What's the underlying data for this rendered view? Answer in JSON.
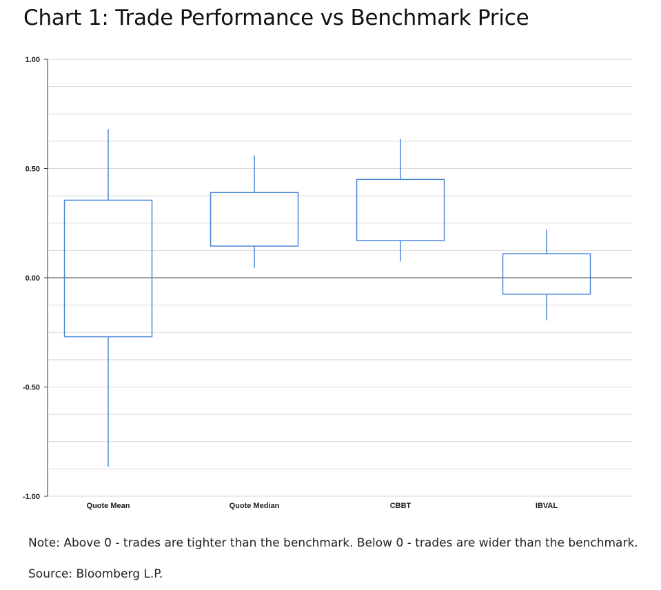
{
  "chart_data": {
    "type": "box",
    "title": "Chart 1: Trade Performance vs Benchmark Price",
    "xlabel": "",
    "ylabel": "",
    "ylim": [
      -1.0,
      1.0
    ],
    "yticks": [
      "1.00",
      "0.50",
      "0.00",
      "-0.50",
      "-1.00"
    ],
    "ytick_values": [
      1.0,
      0.5,
      0.0,
      -0.5,
      -1.0
    ],
    "grid": true,
    "categories": [
      "Quote Mean",
      "Quote Median",
      "CBBT",
      "IBVAL"
    ],
    "boxes": [
      {
        "category": "Quote Mean",
        "whisker_high": 0.68,
        "box_high": 0.355,
        "box_low": -0.27,
        "whisker_low": -0.865
      },
      {
        "category": "Quote Median",
        "whisker_high": 0.56,
        "box_high": 0.39,
        "box_low": 0.145,
        "whisker_low": 0.045
      },
      {
        "category": "CBBT",
        "whisker_high": 0.635,
        "box_high": 0.45,
        "box_low": 0.17,
        "whisker_low": 0.075
      },
      {
        "category": "IBVAL",
        "whisker_high": 0.22,
        "box_high": 0.11,
        "box_low": -0.075,
        "whisker_low": -0.195
      }
    ],
    "colors": {
      "box": "#4a86d8",
      "grid": "#d9d9d9",
      "axis": "#333333",
      "zero_line": "#444444"
    }
  },
  "footer": {
    "note": "Note: Above 0 - trades are tighter than the benchmark. Below 0 - trades are wider than the benchmark.",
    "source": "Source: Bloomberg L.P."
  }
}
